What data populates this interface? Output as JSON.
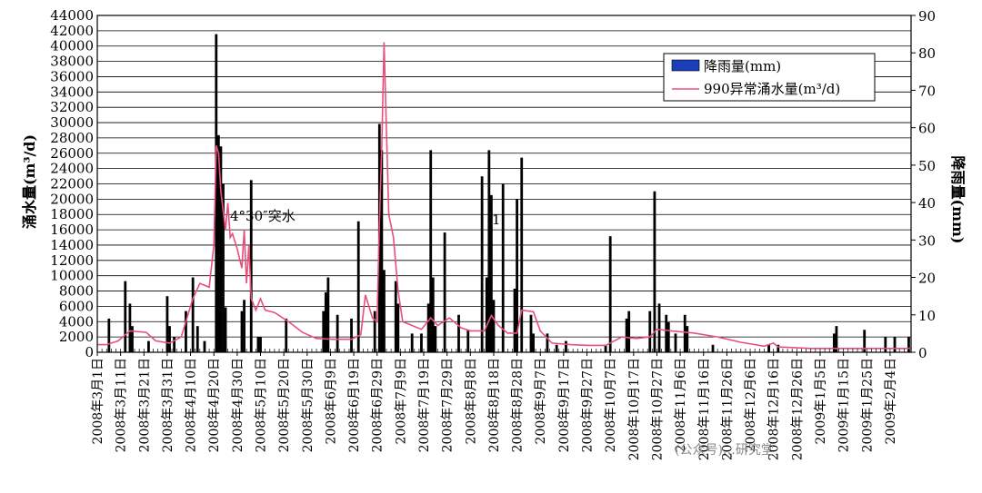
{
  "chart_data": {
    "type": "bar+line",
    "title": "",
    "ylabel_left": "涌水量(m³/d)",
    "ylabel_right": "降雨量(mm)",
    "ylim_left": [
      0,
      44000
    ],
    "ylim_right": [
      0,
      90
    ],
    "yticks_left": [
      "0",
      "2000",
      "4000",
      "6000",
      "8000",
      "10000",
      "12000",
      "14000",
      "16000",
      "18000",
      "20000",
      "22000",
      "24000",
      "26000",
      "28000",
      "30000",
      "32000",
      "34000",
      "36000",
      "38000",
      "40000",
      "42000",
      "44000"
    ],
    "yticks_right": [
      "0",
      "10",
      "20",
      "30",
      "40",
      "50",
      "60",
      "70",
      "80",
      "90"
    ],
    "x_start": "2008-03-01",
    "x_end": "2009-02-13",
    "x_tick_labels": [
      "2008年3月1日",
      "2008年3月11日",
      "2008年3月21日",
      "2008年3月31日",
      "2008年4月10日",
      "2008年4月20日",
      "2008年4月30日",
      "2008年5月10日",
      "2008年5月20日",
      "2008年5月30日",
      "2008年6月9日",
      "2008年6月19日",
      "2008年6月29日",
      "2008年7月9日",
      "2008年7月19日",
      "2008年7月29日",
      "2008年8月8日",
      "2008年8月18日",
      "2008年8月28日",
      "2008年9月7日",
      "2008年9月17日",
      "2008年9月27日",
      "2008年10月7日",
      "2008年10月17日",
      "2008年10月27日",
      "2008年11月6日",
      "2008年11月16日",
      "2008年11月26日",
      "2008年12月6日",
      "2008年12月16日",
      "2008年12月26日",
      "2009年1月5日",
      "2009年1月15日",
      "2009年1月25日",
      "2009年2月4日"
    ],
    "series": [
      {
        "name": "降雨量(mm)",
        "type": "bar",
        "axis": "right",
        "color": "#000000",
        "points": [
          {
            "x": "2008-03-06",
            "y": 9
          },
          {
            "x": "2008-03-13",
            "y": 19
          },
          {
            "x": "2008-03-15",
            "y": 13
          },
          {
            "x": "2008-03-16",
            "y": 7
          },
          {
            "x": "2008-03-23",
            "y": 3
          },
          {
            "x": "2008-03-31",
            "y": 15
          },
          {
            "x": "2008-04-01",
            "y": 7
          },
          {
            "x": "2008-04-03",
            "y": 4
          },
          {
            "x": "2008-04-08",
            "y": 11
          },
          {
            "x": "2008-04-11",
            "y": 20
          },
          {
            "x": "2008-04-13",
            "y": 7
          },
          {
            "x": "2008-04-16",
            "y": 3
          },
          {
            "x": "2008-04-21",
            "y": 85
          },
          {
            "x": "2008-04-22",
            "y": 58
          },
          {
            "x": "2008-04-23",
            "y": 55
          },
          {
            "x": "2008-04-24",
            "y": 45
          },
          {
            "x": "2008-04-25",
            "y": 12
          },
          {
            "x": "2008-05-02",
            "y": 11
          },
          {
            "x": "2008-05-03",
            "y": 14
          },
          {
            "x": "2008-05-06",
            "y": 46
          },
          {
            "x": "2008-05-09",
            "y": 4
          },
          {
            "x": "2008-05-10",
            "y": 4
          },
          {
            "x": "2008-05-21",
            "y": 9
          },
          {
            "x": "2008-06-06",
            "y": 11
          },
          {
            "x": "2008-06-07",
            "y": 16
          },
          {
            "x": "2008-06-08",
            "y": 20
          },
          {
            "x": "2008-06-12",
            "y": 10
          },
          {
            "x": "2008-06-18",
            "y": 9
          },
          {
            "x": "2008-06-21",
            "y": 35
          },
          {
            "x": "2008-06-28",
            "y": 11
          },
          {
            "x": "2008-06-30",
            "y": 61
          },
          {
            "x": "2008-07-01",
            "y": 54
          },
          {
            "x": "2008-07-02",
            "y": 22
          },
          {
            "x": "2008-07-07",
            "y": 19
          },
          {
            "x": "2008-07-08",
            "y": 13
          },
          {
            "x": "2008-07-14",
            "y": 5
          },
          {
            "x": "2008-07-18",
            "y": 5
          },
          {
            "x": "2008-07-21",
            "y": 13
          },
          {
            "x": "2008-07-22",
            "y": 54
          },
          {
            "x": "2008-07-23",
            "y": 20
          },
          {
            "x": "2008-07-24",
            "y": 7
          },
          {
            "x": "2008-07-28",
            "y": 32
          },
          {
            "x": "2008-08-03",
            "y": 10
          },
          {
            "x": "2008-08-07",
            "y": 6
          },
          {
            "x": "2008-08-13",
            "y": 47
          },
          {
            "x": "2008-08-15",
            "y": 20
          },
          {
            "x": "2008-08-16",
            "y": 54
          },
          {
            "x": "2008-08-17",
            "y": 42
          },
          {
            "x": "2008-08-18",
            "y": 14
          },
          {
            "x": "2008-08-22",
            "y": 45
          },
          {
            "x": "2008-08-27",
            "y": 17
          },
          {
            "x": "2008-08-28",
            "y": 41
          },
          {
            "x": "2008-08-30",
            "y": 52
          },
          {
            "x": "2008-09-03",
            "y": 10
          },
          {
            "x": "2008-09-04",
            "y": 5
          },
          {
            "x": "2008-09-10",
            "y": 5
          },
          {
            "x": "2008-09-14",
            "y": 2
          },
          {
            "x": "2008-09-18",
            "y": 3
          },
          {
            "x": "2008-10-05",
            "y": 2
          },
          {
            "x": "2008-10-07",
            "y": 31
          },
          {
            "x": "2008-10-14",
            "y": 9
          },
          {
            "x": "2008-10-15",
            "y": 11
          },
          {
            "x": "2008-10-24",
            "y": 11
          },
          {
            "x": "2008-10-26",
            "y": 43
          },
          {
            "x": "2008-10-28",
            "y": 13
          },
          {
            "x": "2008-10-31",
            "y": 10
          },
          {
            "x": "2008-11-01",
            "y": 8
          },
          {
            "x": "2008-11-04",
            "y": 5
          },
          {
            "x": "2008-11-08",
            "y": 10
          },
          {
            "x": "2008-11-09",
            "y": 7
          },
          {
            "x": "2008-11-20",
            "y": 2
          },
          {
            "x": "2008-12-14",
            "y": 2
          },
          {
            "x": "2008-12-18",
            "y": 2
          },
          {
            "x": "2009-01-11",
            "y": 5
          },
          {
            "x": "2009-01-12",
            "y": 7
          },
          {
            "x": "2009-01-24",
            "y": 6
          },
          {
            "x": "2009-02-02",
            "y": 4
          },
          {
            "x": "2009-02-06",
            "y": 4
          },
          {
            "x": "2009-02-12",
            "y": 4
          }
        ]
      },
      {
        "name": "990异常涌水量(m³/d)",
        "type": "line",
        "axis": "left",
        "color": "#e8507a",
        "points": [
          {
            "x": "2008-03-01",
            "y": 1000
          },
          {
            "x": "2008-03-05",
            "y": 1000
          },
          {
            "x": "2008-03-10",
            "y": 1500
          },
          {
            "x": "2008-03-15",
            "y": 2800
          },
          {
            "x": "2008-03-22",
            "y": 2600
          },
          {
            "x": "2008-03-26",
            "y": 1500
          },
          {
            "x": "2008-04-01",
            "y": 1200
          },
          {
            "x": "2008-04-06",
            "y": 2000
          },
          {
            "x": "2008-04-11",
            "y": 7000
          },
          {
            "x": "2008-04-14",
            "y": 9000
          },
          {
            "x": "2008-04-18",
            "y": 8500
          },
          {
            "x": "2008-04-20",
            "y": 14000
          },
          {
            "x": "2008-04-21",
            "y": 27000
          },
          {
            "x": "2008-04-22",
            "y": 26000
          },
          {
            "x": "2008-04-23",
            "y": 21000
          },
          {
            "x": "2008-04-25",
            "y": 16000
          },
          {
            "x": "2008-04-26",
            "y": 19500
          },
          {
            "x": "2008-04-27",
            "y": 15000
          },
          {
            "x": "2008-04-28",
            "y": 15500
          },
          {
            "x": "2008-04-30",
            "y": 13500
          },
          {
            "x": "2008-05-02",
            "y": 11000
          },
          {
            "x": "2008-05-03",
            "y": 16000
          },
          {
            "x": "2008-05-04",
            "y": 9000
          },
          {
            "x": "2008-05-05",
            "y": 14000
          },
          {
            "x": "2008-05-06",
            "y": 7000
          },
          {
            "x": "2008-05-08",
            "y": 5500
          },
          {
            "x": "2008-05-10",
            "y": 7000
          },
          {
            "x": "2008-05-12",
            "y": 5500
          },
          {
            "x": "2008-05-16",
            "y": 5200
          },
          {
            "x": "2008-05-22",
            "y": 4000
          },
          {
            "x": "2008-05-28",
            "y": 2600
          },
          {
            "x": "2008-06-03",
            "y": 1800
          },
          {
            "x": "2008-06-10",
            "y": 1700
          },
          {
            "x": "2008-06-18",
            "y": 1700
          },
          {
            "x": "2008-06-22",
            "y": 2300
          },
          {
            "x": "2008-06-24",
            "y": 7500
          },
          {
            "x": "2008-06-27",
            "y": 4500
          },
          {
            "x": "2008-06-29",
            "y": 4000
          },
          {
            "x": "2008-06-30",
            "y": 17000
          },
          {
            "x": "2008-07-01",
            "y": 27000
          },
          {
            "x": "2008-07-02",
            "y": 40500
          },
          {
            "x": "2008-07-03",
            "y": 29000
          },
          {
            "x": "2008-07-04",
            "y": 18000
          },
          {
            "x": "2008-07-06",
            "y": 15000
          },
          {
            "x": "2008-07-08",
            "y": 8000
          },
          {
            "x": "2008-07-10",
            "y": 4000
          },
          {
            "x": "2008-07-14",
            "y": 3500
          },
          {
            "x": "2008-07-18",
            "y": 3000
          },
          {
            "x": "2008-07-22",
            "y": 4500
          },
          {
            "x": "2008-07-25",
            "y": 3500
          },
          {
            "x": "2008-07-30",
            "y": 4500
          },
          {
            "x": "2008-08-04",
            "y": 3200
          },
          {
            "x": "2008-08-08",
            "y": 2800
          },
          {
            "x": "2008-08-14",
            "y": 2800
          },
          {
            "x": "2008-08-17",
            "y": 4800
          },
          {
            "x": "2008-08-20",
            "y": 3500
          },
          {
            "x": "2008-08-24",
            "y": 2500
          },
          {
            "x": "2008-08-28",
            "y": 2500
          },
          {
            "x": "2008-08-30",
            "y": 5500
          },
          {
            "x": "2008-09-04",
            "y": 5300
          },
          {
            "x": "2008-09-07",
            "y": 2800
          },
          {
            "x": "2008-09-12",
            "y": 1200
          },
          {
            "x": "2008-09-20",
            "y": 1000
          },
          {
            "x": "2008-09-28",
            "y": 900
          },
          {
            "x": "2008-10-05",
            "y": 900
          },
          {
            "x": "2008-10-12",
            "y": 2000
          },
          {
            "x": "2008-10-18",
            "y": 1800
          },
          {
            "x": "2008-10-24",
            "y": 2000
          },
          {
            "x": "2008-10-27",
            "y": 3000
          },
          {
            "x": "2008-11-02",
            "y": 2800
          },
          {
            "x": "2008-11-12",
            "y": 2500
          },
          {
            "x": "2008-11-22",
            "y": 2000
          },
          {
            "x": "2008-12-02",
            "y": 1300
          },
          {
            "x": "2008-12-12",
            "y": 800
          },
          {
            "x": "2008-12-16",
            "y": 1200
          },
          {
            "x": "2008-12-18",
            "y": 700
          },
          {
            "x": "2009-01-01",
            "y": 500
          },
          {
            "x": "2009-01-16",
            "y": 500
          },
          {
            "x": "2009-02-13",
            "y": 500
          }
        ]
      }
    ],
    "legend_position": "top-right",
    "annotations": [
      {
        "text": "4°30″突水",
        "x": "2008-04-24",
        "y": 18000
      },
      {
        "text": "1",
        "x": "2008-08-18",
        "y": 16500
      }
    ],
    "grid": "horizontal"
  },
  "watermark": {
    "text": "(公众号)…研究堂"
  }
}
